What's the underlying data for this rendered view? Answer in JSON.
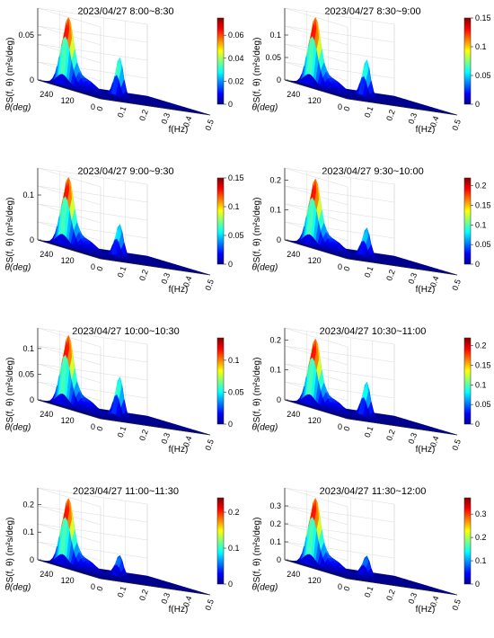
{
  "chart_data": [
    {
      "type": "surface3d",
      "title": "2023/04/27 8:00~8:30",
      "zlabel": "S(f, θ) (m²s/deg)",
      "xlabel": "f(Hz)",
      "ylabel": "θ(deg)",
      "x_ticks": [
        "0",
        "0.1",
        "0.2",
        "0.3",
        "0.4",
        "0.5"
      ],
      "y_ticks": [
        "240",
        "120",
        "0"
      ],
      "z_ticks": [
        "0",
        "0.05"
      ],
      "zlim": [
        0,
        0.08
      ],
      "colorbar_ticks": [
        "0",
        "0.02",
        "0.04",
        "0.06"
      ],
      "colorbar_max": 0.075,
      "peaks": [
        {
          "f": 0.08,
          "theta": 290,
          "value": 0.075
        },
        {
          "f": 0.22,
          "theta": 170,
          "value": 0.045
        }
      ]
    },
    {
      "type": "surface3d",
      "title": "2023/04/27 8:30~9:00",
      "zlabel": "S(f, θ) (m²s/deg)",
      "xlabel": "f(Hz)",
      "ylabel": "θ(deg)",
      "x_ticks": [
        "0",
        "0.1",
        "0.2",
        "0.3",
        "0.4",
        "0.5"
      ],
      "y_ticks": [
        "240",
        "120",
        "0"
      ],
      "z_ticks": [
        "0",
        "0.05",
        "0.1"
      ],
      "zlim": [
        0,
        0.16
      ],
      "colorbar_ticks": [
        "0",
        "0.05",
        "0.1",
        "0.15"
      ],
      "colorbar_max": 0.15,
      "peaks": [
        {
          "f": 0.08,
          "theta": 290,
          "value": 0.15
        },
        {
          "f": 0.22,
          "theta": 170,
          "value": 0.085
        }
      ]
    },
    {
      "type": "surface3d",
      "title": "2023/04/27 9:00~9:30",
      "zlabel": "S(f, θ) (m²s/deg)",
      "xlabel": "f(Hz)",
      "ylabel": "θ(deg)",
      "x_ticks": [
        "0",
        "0.1",
        "0.2",
        "0.3",
        "0.4",
        "0.5"
      ],
      "y_ticks": [
        "240",
        "120",
        "0"
      ],
      "z_ticks": [
        "0",
        "0.1"
      ],
      "zlim": [
        0,
        0.16
      ],
      "colorbar_ticks": [
        "0",
        "0.05",
        "0.1",
        "0.15"
      ],
      "colorbar_max": 0.15,
      "peaks": [
        {
          "f": 0.08,
          "theta": 290,
          "value": 0.15
        },
        {
          "f": 0.22,
          "theta": 170,
          "value": 0.075
        }
      ]
    },
    {
      "type": "surface3d",
      "title": "2023/04/27 9:30~10:00",
      "zlabel": "S(f, θ) (m²s/deg)",
      "xlabel": "f(Hz)",
      "ylabel": "θ(deg)",
      "x_ticks": [
        "0",
        "0.1",
        "0.2",
        "0.3",
        "0.4",
        "0.5"
      ],
      "y_ticks": [
        "240",
        "120",
        "0"
      ],
      "z_ticks": [
        "0",
        "0.1",
        "0.2"
      ],
      "zlim": [
        0,
        0.24
      ],
      "colorbar_ticks": [
        "0",
        "0.05",
        "0.1",
        "0.15",
        "0.2"
      ],
      "colorbar_max": 0.22,
      "peaks": [
        {
          "f": 0.08,
          "theta": 290,
          "value": 0.22
        },
        {
          "f": 0.22,
          "theta": 170,
          "value": 0.1
        }
      ]
    },
    {
      "type": "surface3d",
      "title": "2023/04/27 10:00~10:30",
      "zlabel": "S(f, θ) (m²s/deg)",
      "xlabel": "f(Hz)",
      "ylabel": "θ(deg)",
      "x_ticks": [
        "0",
        "0.1",
        "0.2",
        "0.3",
        "0.4",
        "0.5"
      ],
      "y_ticks": [
        "240",
        "120",
        "0"
      ],
      "z_ticks": [
        "0",
        "0.05",
        "0.1"
      ],
      "zlim": [
        0,
        0.14
      ],
      "colorbar_ticks": [
        "0",
        "0.05",
        "0.1"
      ],
      "colorbar_max": 0.135,
      "peaks": [
        {
          "f": 0.08,
          "theta": 290,
          "value": 0.135
        },
        {
          "f": 0.22,
          "theta": 170,
          "value": 0.08
        }
      ]
    },
    {
      "type": "surface3d",
      "title": "2023/04/27 10:30~11:00",
      "zlabel": "S(f, θ) (m²s/deg)",
      "xlabel": "f(Hz)",
      "ylabel": "θ(deg)",
      "x_ticks": [
        "0",
        "0.1",
        "0.2",
        "0.3",
        "0.4",
        "0.5"
      ],
      "y_ticks": [
        "240",
        "120",
        "0"
      ],
      "z_ticks": [
        "0",
        "0.1",
        "0.2"
      ],
      "zlim": [
        0,
        0.24
      ],
      "colorbar_ticks": [
        "0",
        "0.05",
        "0.1",
        "0.15",
        "0.2"
      ],
      "colorbar_max": 0.22,
      "peaks": [
        {
          "f": 0.08,
          "theta": 290,
          "value": 0.22
        },
        {
          "f": 0.22,
          "theta": 170,
          "value": 0.12
        }
      ]
    },
    {
      "type": "surface3d",
      "title": "2023/04/27 11:00~11:30",
      "zlabel": "S(f, θ) (m²s/deg)",
      "xlabel": "f(Hz)",
      "ylabel": "θ(deg)",
      "x_ticks": [
        "0",
        "0.1",
        "0.2",
        "0.3",
        "0.4",
        "0.5"
      ],
      "y_ticks": [
        "240",
        "120",
        "0"
      ],
      "z_ticks": [
        "0",
        "0.1",
        "0.2"
      ],
      "zlim": [
        0,
        0.26
      ],
      "colorbar_ticks": [
        "0",
        "0.1",
        "0.2"
      ],
      "colorbar_max": 0.24,
      "peaks": [
        {
          "f": 0.08,
          "theta": 290,
          "value": 0.24
        },
        {
          "f": 0.22,
          "theta": 170,
          "value": 0.08
        }
      ]
    },
    {
      "type": "surface3d",
      "title": "2023/04/27 11:30~12:00",
      "zlabel": "S(f, θ) (m²s/deg)",
      "xlabel": "f(Hz)",
      "ylabel": "θ(deg)",
      "x_ticks": [
        "0",
        "0.1",
        "0.2",
        "0.3",
        "0.4",
        "0.5"
      ],
      "y_ticks": [
        "240",
        "120",
        "0"
      ],
      "z_ticks": [
        "0",
        "0.1",
        "0.2",
        "0.3"
      ],
      "zlim": [
        0,
        0.4
      ],
      "colorbar_ticks": [
        "0",
        "0.1",
        "0.2",
        "0.3"
      ],
      "colorbar_max": 0.37,
      "peaks": [
        {
          "f": 0.08,
          "theta": 290,
          "value": 0.37
        },
        {
          "f": 0.22,
          "theta": 170,
          "value": 0.12
        }
      ]
    }
  ],
  "colors": {
    "jet": [
      "#00008f",
      "#0000ff",
      "#00ffff",
      "#ffff00",
      "#ff0000",
      "#800000"
    ],
    "grid": "#d9d9d9",
    "axis": "#262626",
    "text": "#000000"
  }
}
